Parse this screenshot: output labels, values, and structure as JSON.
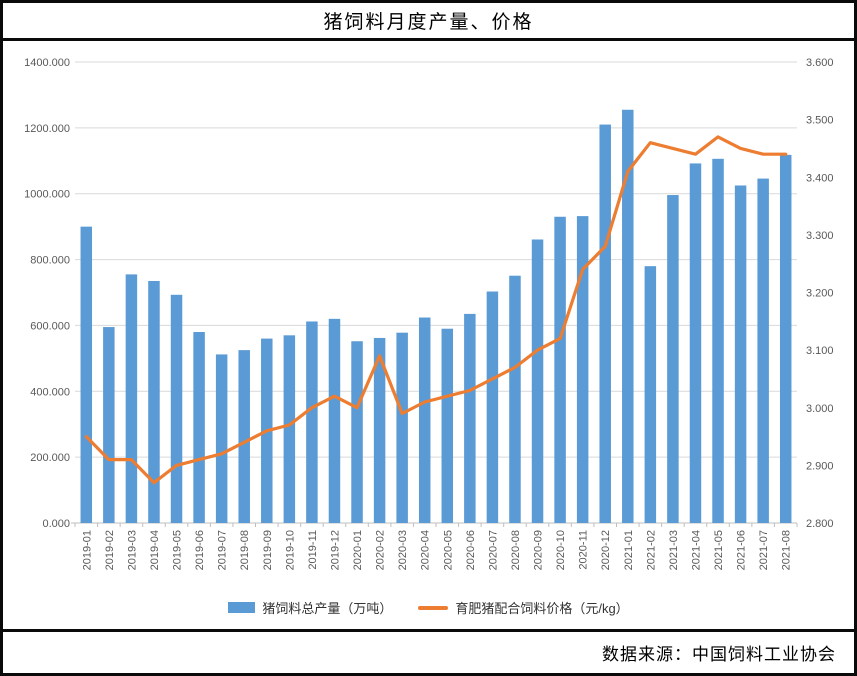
{
  "header": {
    "title": "猪饲料月度产量、价格"
  },
  "footer": {
    "source": "数据来源：中国饲料工业协会"
  },
  "chart_data": {
    "type": "bar",
    "title": "猪饲料月度产量、价格",
    "categories": [
      "2019-01",
      "2019-02",
      "2019-03",
      "2019-04",
      "2019-05",
      "2019-06",
      "2019-07",
      "2019-08",
      "2019-09",
      "2019-10",
      "2019-11",
      "2019-12",
      "2020-01",
      "2020-02",
      "2020-03",
      "2020-04",
      "2020-05",
      "2020-06",
      "2020-07",
      "2020-08",
      "2020-09",
      "2020-10",
      "2020-11",
      "2020-12",
      "2021-01",
      "2021-02",
      "2021-03",
      "2021-04",
      "2021-05",
      "2021-06",
      "2021-07",
      "2021-08"
    ],
    "series": [
      {
        "name": "猪饲料总产量（万吨）",
        "type": "bar",
        "axis": "left",
        "color": "#5B9BD5",
        "values": [
          900,
          595,
          755,
          735,
          693,
          580,
          512,
          525,
          560,
          570,
          612,
          620,
          552,
          562,
          578,
          624,
          590,
          635,
          703,
          751,
          861,
          930,
          932,
          1210,
          1255,
          780,
          996,
          1092,
          1106,
          1025,
          1046,
          1118
        ]
      },
      {
        "name": "育肥猪配合饲料价格（元/kg）",
        "type": "line",
        "axis": "right",
        "color": "#ED7D31",
        "values": [
          2.95,
          2.91,
          2.91,
          2.87,
          2.9,
          2.91,
          2.92,
          2.94,
          2.96,
          2.97,
          3.0,
          3.02,
          3.0,
          3.09,
          2.99,
          3.01,
          3.02,
          3.03,
          3.05,
          3.07,
          3.1,
          3.12,
          3.24,
          3.28,
          3.41,
          3.46,
          3.45,
          3.44,
          3.47,
          3.45,
          3.44,
          3.44
        ]
      }
    ],
    "left_axis": {
      "min": 0,
      "max": 1400,
      "step": 200,
      "tick_labels": [
        "0.000",
        "200.000",
        "400.000",
        "600.000",
        "800.000",
        "1000.000",
        "1200.000",
        "1400.000"
      ]
    },
    "right_axis": {
      "min": 2.8,
      "max": 3.6,
      "step": 0.1,
      "tick_labels": [
        "2.800",
        "2.900",
        "3.000",
        "3.100",
        "3.200",
        "3.300",
        "3.400",
        "3.500",
        "3.600"
      ]
    },
    "grid": true,
    "legend_position": "bottom",
    "colors": {
      "gridline": "#D9D9D9",
      "axis_line": "#BFBFBF",
      "tick_text": "#595959"
    }
  }
}
